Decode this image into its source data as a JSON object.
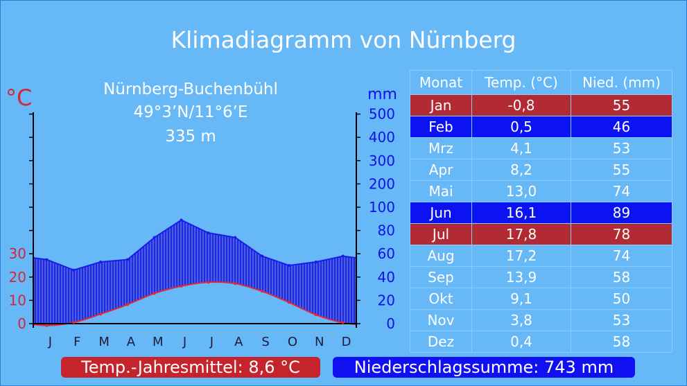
{
  "title": "Klimadiagramm von Nürnberg",
  "station": {
    "name": "Nürnberg-Buchenbühl",
    "coords": "49°3’N/11°6’E",
    "elevation": "335 m"
  },
  "colors": {
    "background": "#66b8f7",
    "temperature": "#d4263a",
    "precipitation": "#1111e6",
    "highlight_red": "#b22a33",
    "highlight_blue": "#0b13f2"
  },
  "table": {
    "headers": [
      "Monat",
      "Temp. (°C)",
      "Nied. (mm)"
    ],
    "rows": [
      {
        "month": "Jan",
        "temp": "-0,8",
        "prec": "55",
        "highlight": "red"
      },
      {
        "month": "Feb",
        "temp": "0,5",
        "prec": "46",
        "highlight": "blue"
      },
      {
        "month": "Mrz",
        "temp": "4,1",
        "prec": "53",
        "highlight": ""
      },
      {
        "month": "Apr",
        "temp": "8,2",
        "prec": "55",
        "highlight": ""
      },
      {
        "month": "Mai",
        "temp": "13,0",
        "prec": "74",
        "highlight": ""
      },
      {
        "month": "Jun",
        "temp": "16,1",
        "prec": "89",
        "highlight": "blue"
      },
      {
        "month": "Jul",
        "temp": "17,8",
        "prec": "78",
        "highlight": "red"
      },
      {
        "month": "Aug",
        "temp": "17,2",
        "prec": "74",
        "highlight": ""
      },
      {
        "month": "Sep",
        "temp": "13,9",
        "prec": "58",
        "highlight": ""
      },
      {
        "month": "Okt",
        "temp": "9,1",
        "prec": "50",
        "highlight": ""
      },
      {
        "month": "Nov",
        "temp": "3,8",
        "prec": "53",
        "highlight": ""
      },
      {
        "month": "Dez",
        "temp": "0,4",
        "prec": "58",
        "highlight": ""
      }
    ]
  },
  "summary": {
    "temp_mean": "Temp.-Jahresmittel: 8,6 °C",
    "prec_sum": "Niederschlagssumme: 743 mm"
  },
  "chart_data": {
    "type": "line",
    "categories": [
      "J",
      "F",
      "M",
      "A",
      "M",
      "J",
      "J",
      "A",
      "S",
      "O",
      "N",
      "D"
    ],
    "series": [
      {
        "name": "Temp. (°C)",
        "axis": "left",
        "values": [
          -0.8,
          0.5,
          4.1,
          8.2,
          13.0,
          16.1,
          17.8,
          17.2,
          13.9,
          9.1,
          3.8,
          0.4
        ]
      },
      {
        "name": "Nied. (mm)",
        "axis": "right",
        "values": [
          55,
          46,
          53,
          55,
          74,
          89,
          78,
          74,
          58,
          50,
          53,
          58
        ]
      }
    ],
    "left_axis": {
      "label": "°C",
      "ticks": [
        0,
        10,
        20,
        30
      ],
      "ylim": [
        0,
        30
      ]
    },
    "right_axis": {
      "label": "mm",
      "ticks": [
        0,
        20,
        40,
        60,
        80,
        100,
        200,
        300,
        400,
        500
      ],
      "ylim": [
        0,
        500
      ],
      "scale_break": 100
    }
  }
}
